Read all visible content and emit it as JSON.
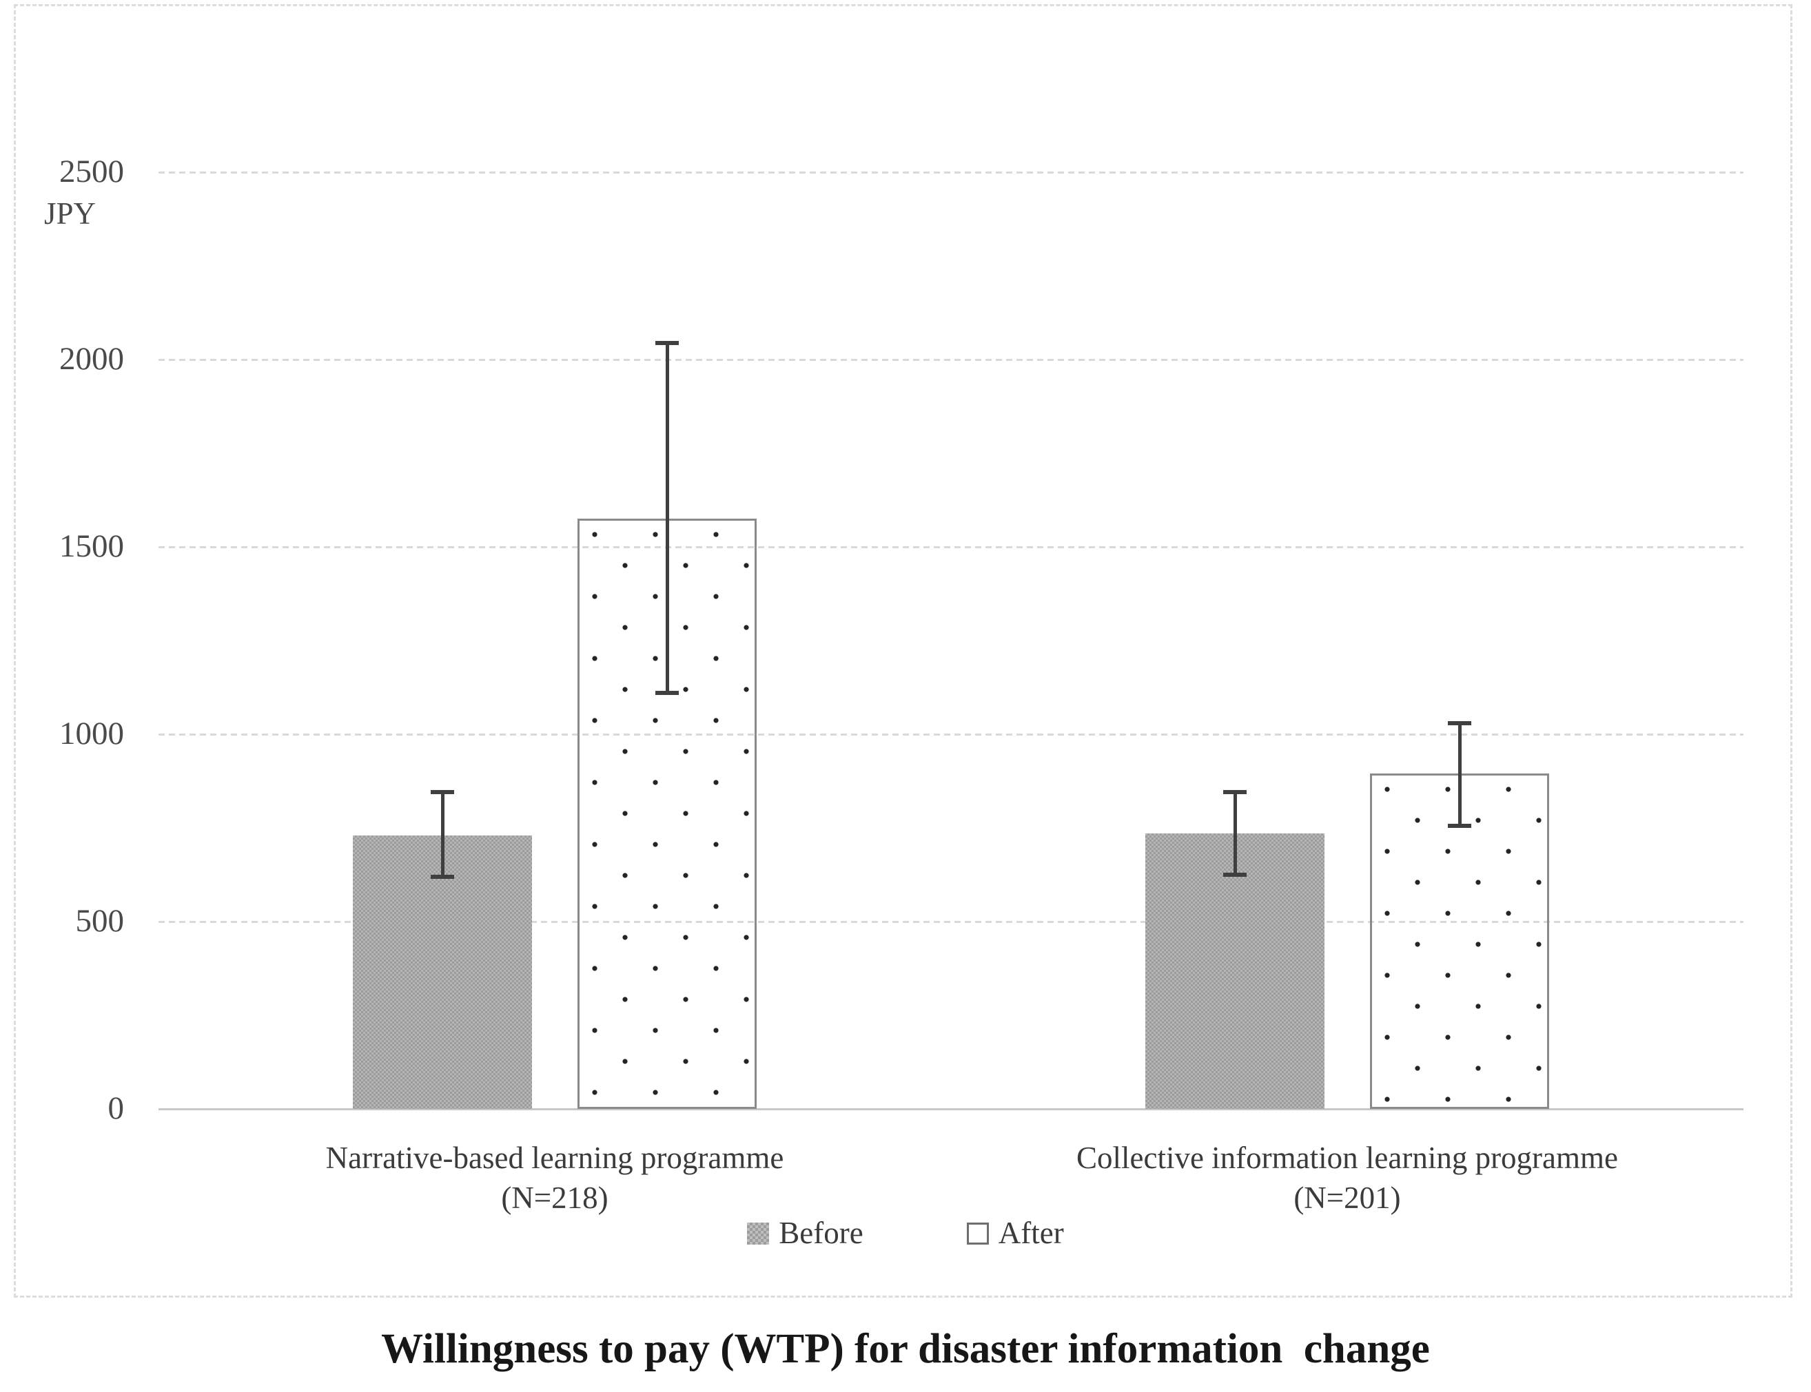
{
  "title": "Willingness to pay (WTP) for disaster information  change",
  "unit_label": "JPY",
  "legend": {
    "before_label": "Before",
    "after_label": "After"
  },
  "chart_data": {
    "type": "bar",
    "title": "Willingness to pay (WTP) for disaster information  change",
    "ylabel": "JPY",
    "ylim": [
      0,
      2500
    ],
    "yticks": [
      0,
      500,
      1000,
      1500,
      2000,
      2500
    ],
    "grid": "horizontal-dashed",
    "legend_position": "bottom-center",
    "categories": [
      {
        "label": "Narrative-based learning programme",
        "n": "(N=218)"
      },
      {
        "label": "Collective information learning programme",
        "n": "(N=201)"
      }
    ],
    "series": [
      {
        "name": "Before",
        "style": "gray-checker",
        "values": [
          730,
          735
        ],
        "error_low": [
          620,
          625
        ],
        "error_high": [
          845,
          845
        ]
      },
      {
        "name": "After",
        "style": "white-dotted",
        "values": [
          1575,
          895
        ],
        "error_low": [
          1110,
          755
        ],
        "error_high": [
          2045,
          1030
        ]
      }
    ],
    "colors": {
      "before_fill": "#a8a8a8",
      "after_dot": "#242424",
      "after_border": "#8a8a8a",
      "error_bar": "#3f3f3f",
      "gridline": "#d9d9d9",
      "tick_text": "#4a4a4a",
      "label_text": "#3b3b3b",
      "title_text": "#171717"
    }
  }
}
